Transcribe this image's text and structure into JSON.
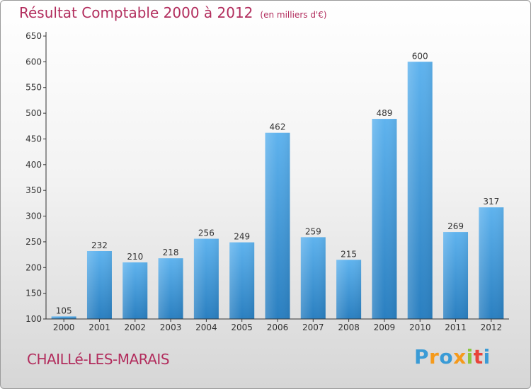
{
  "header": {
    "title": "Résultat Comptable 2000 à 2012",
    "subtitle": "(en milliers d'€)"
  },
  "footer": {
    "city": "CHAILLé-LES-MARAIS",
    "logo": {
      "text": "Proxiti",
      "letter_colors": [
        "#3a9bd6",
        "#f59a1b",
        "#3a9bd6",
        "#f59a1b",
        "#8cc63e",
        "#e8443a",
        "#3a9bd6"
      ]
    }
  },
  "colors": {
    "title": "#b22d5d",
    "bar_light": "#5fb3ee",
    "bar_dark": "#2a7fc0",
    "axis": "#333333"
  },
  "chart_data": {
    "type": "bar",
    "title": "Résultat Comptable 2000 à 2012",
    "subtitle": "(en milliers d'€)",
    "categories": [
      "2000",
      "2001",
      "2002",
      "2003",
      "2004",
      "2005",
      "2006",
      "2007",
      "2008",
      "2009",
      "2010",
      "2011",
      "2012"
    ],
    "values": [
      105,
      232,
      210,
      218,
      256,
      249,
      462,
      259,
      215,
      489,
      600,
      269,
      317
    ],
    "ylim": [
      100,
      650
    ],
    "yticks": [
      100,
      150,
      200,
      250,
      300,
      350,
      400,
      450,
      500,
      550,
      600,
      650
    ],
    "xlabel": "",
    "ylabel": "",
    "grid": false,
    "data_labels": true
  }
}
